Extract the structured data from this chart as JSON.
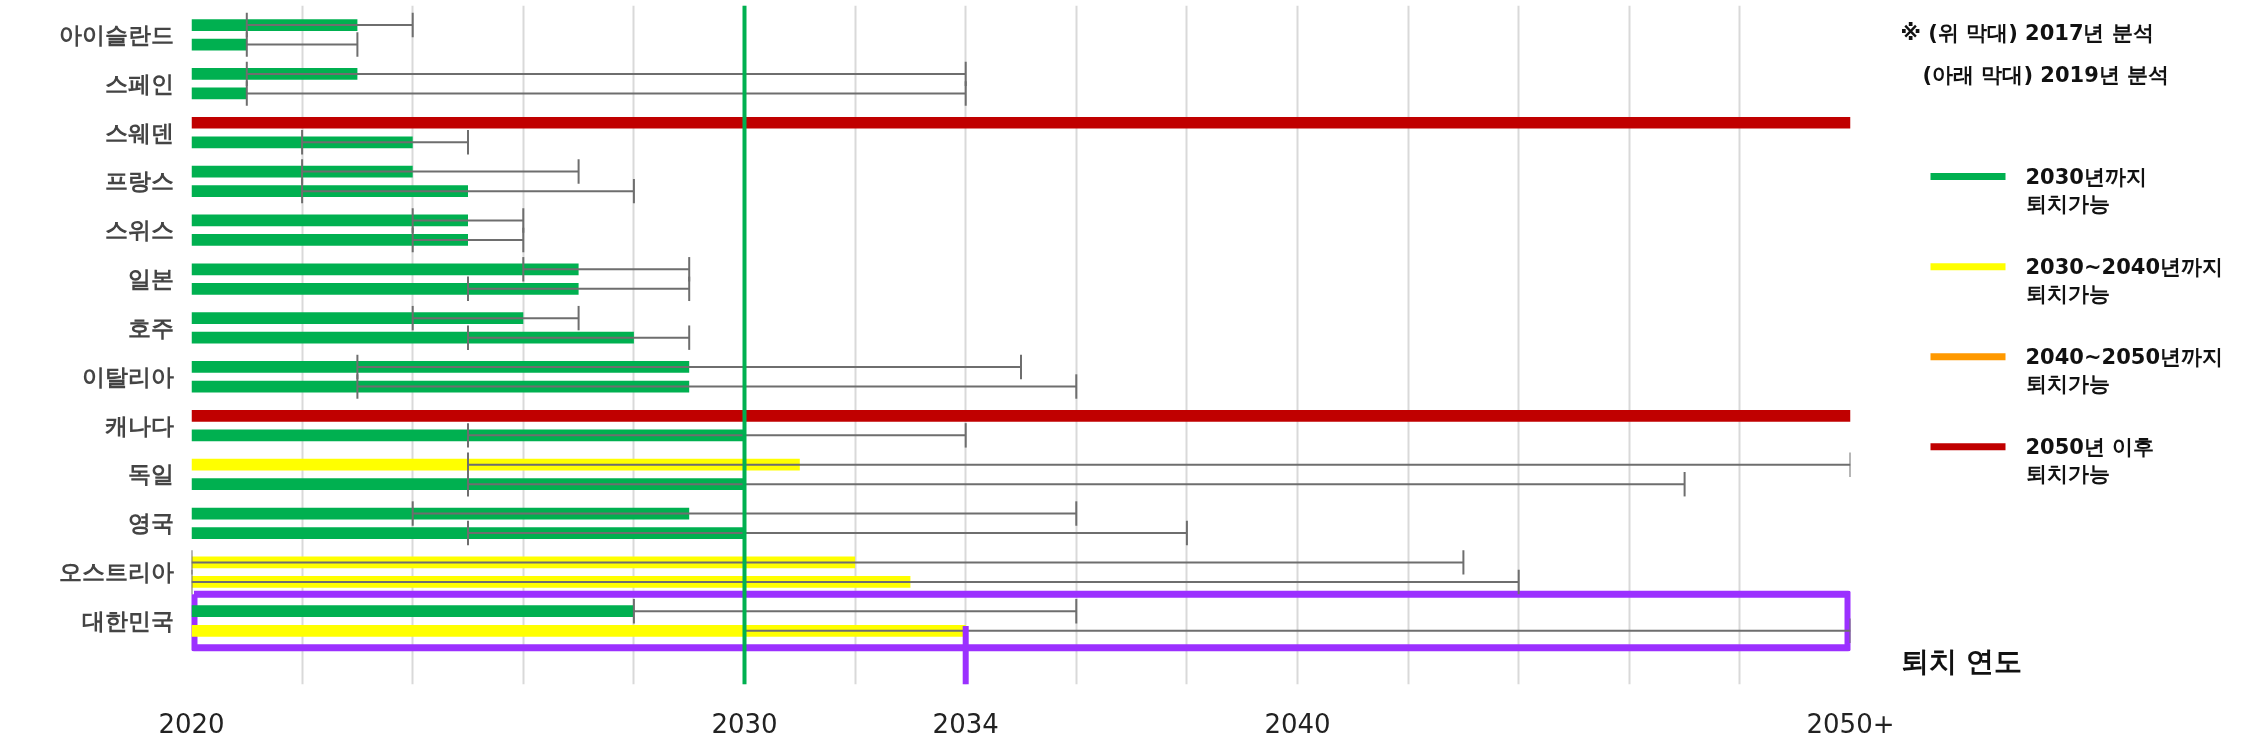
{
  "chart_data": {
    "type": "bar",
    "orientation": "horizontal",
    "xlabel": "퇴치 연도",
    "categories": [
      "아이슬란드",
      "스페인",
      "스웨덴",
      "프랑스",
      "스위스",
      "일본",
      "호주",
      "이탈리아",
      "캐나다",
      "독일",
      "영국",
      "오스트리아",
      "대한민국"
    ],
    "series": [
      {
        "values": [
          2023,
          2023,
          2050,
          2024,
          2025,
          2027,
          2026,
          2029,
          2050,
          2031,
          2029,
          2032,
          2028
        ],
        "colors": [
          "#00b050",
          "#00b050",
          "#c00000",
          "#00b050",
          "#00b050",
          "#00b050",
          "#00b050",
          "#00b050",
          "#c00000",
          "#ffff00",
          "#00b050",
          "#ffff00",
          "#00b050"
        ],
        "errors": [
          [
            2021,
            2024
          ],
          [
            2021,
            2034
          ],
          null,
          [
            2022,
            2027
          ],
          [
            2024,
            2026
          ],
          [
            2026,
            2029
          ],
          [
            2024,
            2027
          ],
          [
            2023,
            2035
          ],
          null,
          [
            2025,
            2050
          ],
          [
            2024,
            2036
          ],
          [
            2020,
            2043
          ],
          [
            2028,
            2036
          ]
        ]
      },
      {
        "values": [
          2021,
          2021,
          2024,
          2025,
          2025,
          2027,
          2028,
          2029,
          2030,
          2030,
          2030,
          2033,
          2034
        ],
        "colors": [
          "#00b050",
          "#00b050",
          "#00b050",
          "#00b050",
          "#00b050",
          "#00b050",
          "#00b050",
          "#00b050",
          "#00b050",
          "#00b050",
          "#00b050",
          "#ffff00",
          "#ffff00"
        ],
        "errors": [
          [
            2021,
            2023
          ],
          [
            2021,
            2034
          ],
          [
            2022,
            2025
          ],
          [
            2022,
            2028
          ],
          [
            2024,
            2026
          ],
          [
            2025,
            2029
          ],
          [
            2025,
            2029
          ],
          [
            2023,
            2036
          ],
          [
            2025,
            2034
          ],
          [
            2025,
            2047
          ],
          [
            2025,
            2038
          ],
          [
            2020,
            2044
          ],
          [
            2030,
            2050
          ]
        ]
      },
      {
        "type": "line",
        "name": "2030년까지\n퇴치가능",
        "color": "#00b050",
        "values": [
          null,
          null,
          null,
          null,
          null,
          null,
          null,
          null,
          null,
          null,
          null,
          null,
          null
        ]
      },
      {
        "type": "line",
        "name": "2030~2040년까지\n퇴치가능",
        "color": "#ffff00",
        "values": [
          null,
          null,
          null,
          null,
          null,
          null,
          null,
          null,
          null,
          null,
          null,
          null,
          null
        ]
      },
      {
        "type": "line",
        "name": "2040~2050년까지\n퇴치가능",
        "color": "#ff9900",
        "values": [
          null,
          null,
          null,
          null,
          null,
          null,
          null,
          null,
          null,
          null,
          null,
          null,
          null
        ]
      },
      {
        "type": "line",
        "name": "2050년 이후\n퇴치가능",
        "color": "#c00000",
        "values": [
          null,
          null,
          null,
          null,
          null,
          null,
          null,
          null,
          null,
          null,
          null,
          null,
          null
        ]
      }
    ],
    "xlim": [
      2020,
      2050
    ],
    "xticks": [
      2020,
      {
        "value": 2022,
        "label": null
      },
      {
        "value": 2024,
        "label": null
      },
      {
        "value": 2026,
        "label": null
      },
      {
        "value": 2028,
        "label": null
      },
      2030,
      {
        "value": 2032,
        "label": null
      },
      2034,
      {
        "value": 2036,
        "label": null
      },
      {
        "value": 2038,
        "label": null
      },
      2040,
      {
        "value": 2042,
        "label": null
      },
      {
        "value": 2044,
        "label": null
      },
      {
        "value": 2046,
        "label": null
      },
      {
        "value": 2048,
        "label": null
      },
      {
        "value": 2050,
        "label": "2050+"
      }
    ],
    "ref_lines": [
      {
        "axis": "x",
        "value": 2030,
        "color": "#00b050"
      },
      {
        "axis": "x",
        "value": 2034,
        "color": "#9b30ff"
      }
    ],
    "annotations": [
      "※ (위 막대) 2017년 분석",
      "(아래 막대) 2019년 분석"
    ],
    "grid": "x",
    "legend": "right"
  }
}
